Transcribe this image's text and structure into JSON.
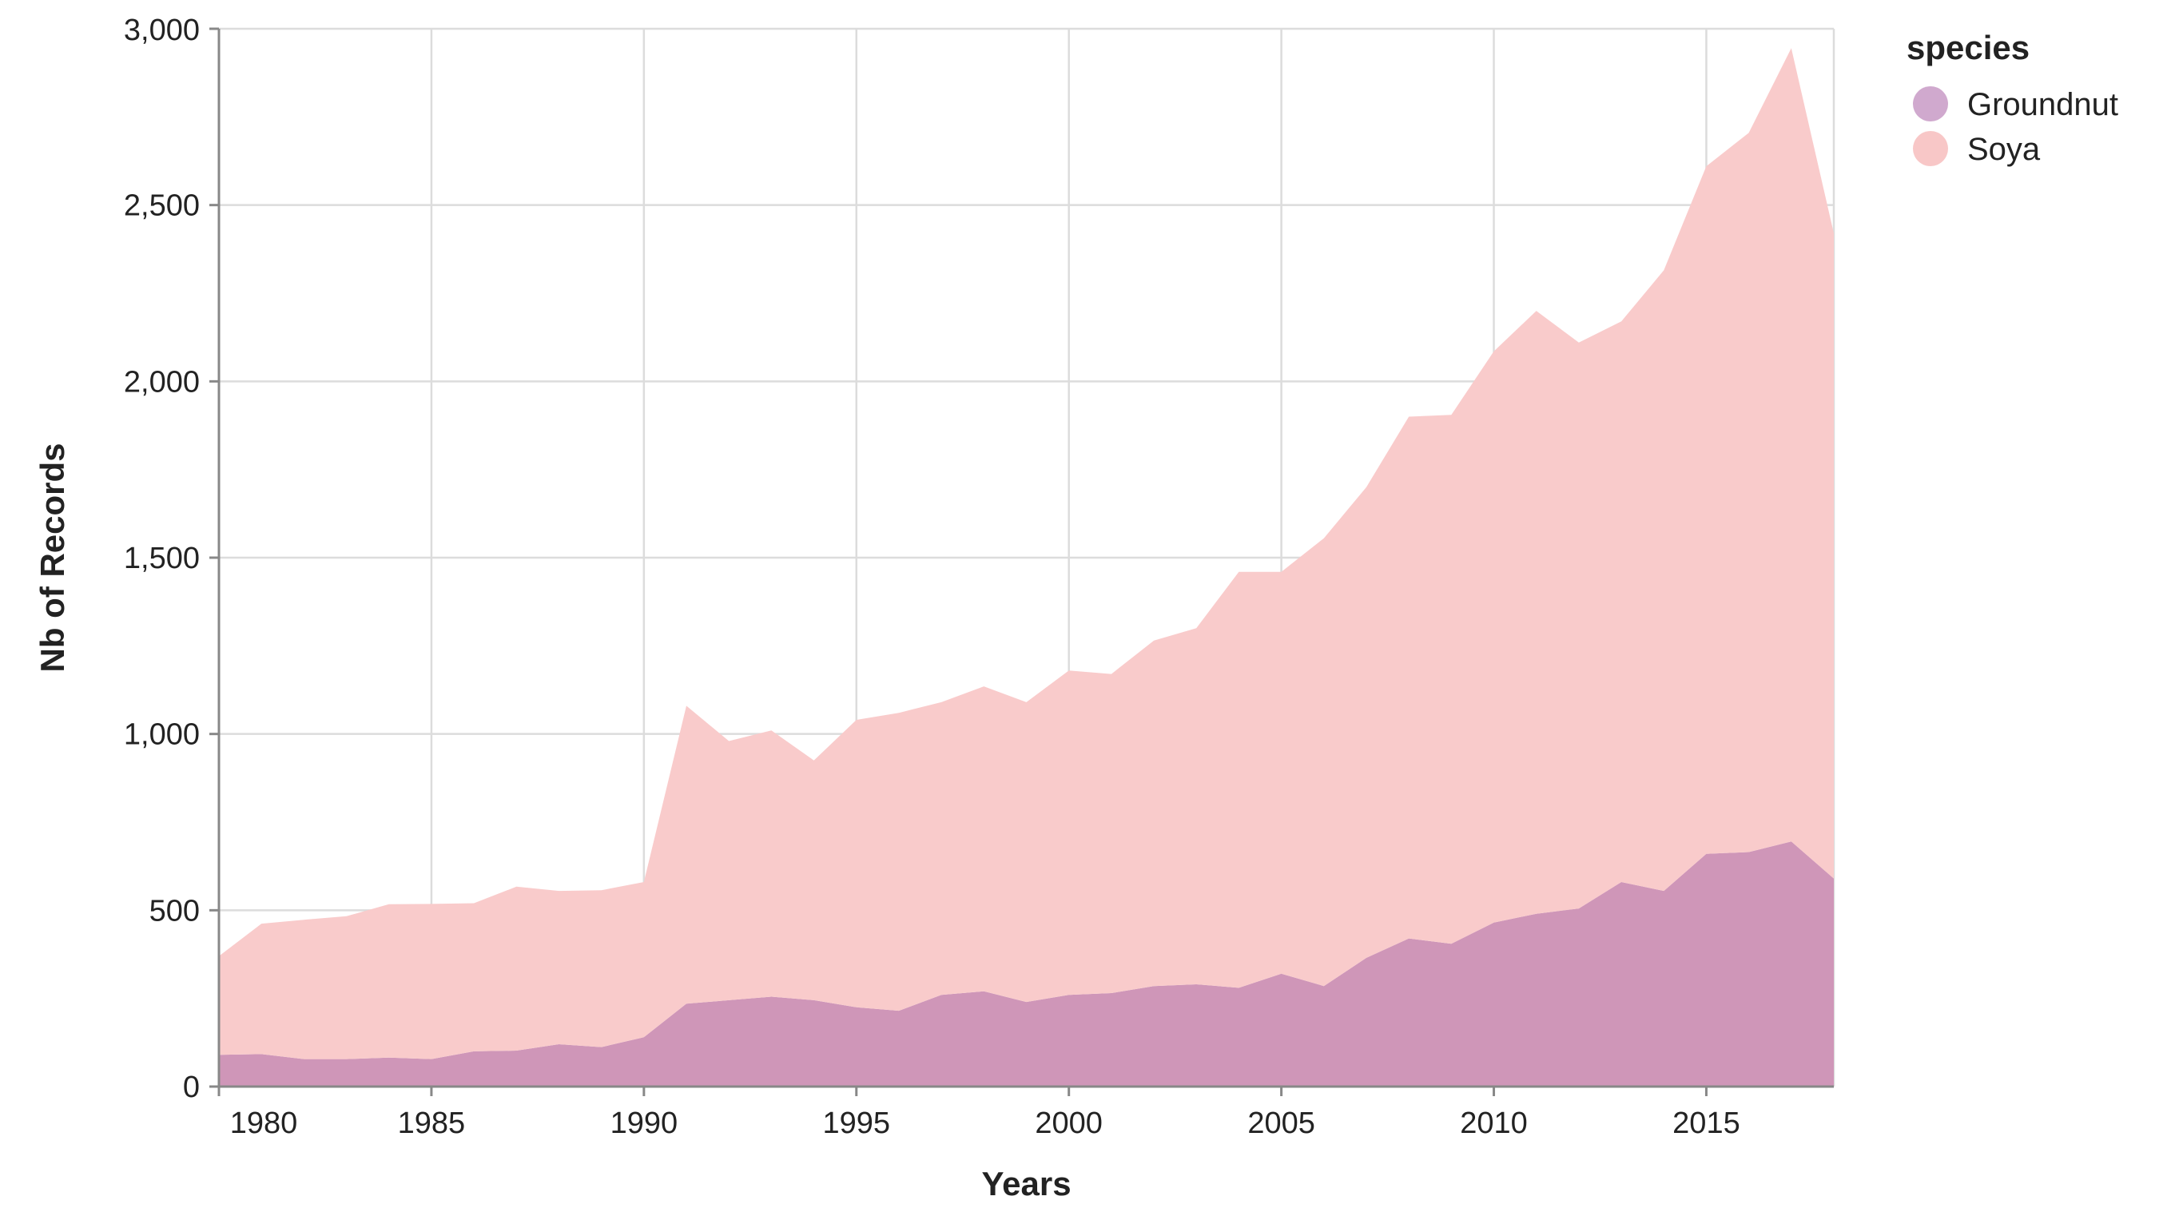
{
  "chart_data": {
    "type": "area",
    "stacked": true,
    "title": "",
    "xlabel": "Years",
    "ylabel": "Nb of Records",
    "xlim": [
      1980,
      2018
    ],
    "ylim": [
      0,
      3000
    ],
    "grid": true,
    "x_ticks": [
      1980,
      1985,
      1990,
      1995,
      2000,
      2005,
      2010,
      2015
    ],
    "x_tick_labels": [
      "1980",
      "1985",
      "1990",
      "1995",
      "2000",
      "2005",
      "2010",
      "2015"
    ],
    "y_ticks": [
      0,
      500,
      1000,
      1500,
      2000,
      2500,
      3000
    ],
    "y_tick_labels": [
      "0",
      "500",
      "1,000",
      "1,500",
      "2,000",
      "2,500",
      "3,000"
    ],
    "legend": {
      "title": "species",
      "position": "top-right",
      "items": [
        {
          "label": "Groundnut",
          "color": "#d0a9ce"
        },
        {
          "label": "Soya",
          "color": "#f8c7c7"
        }
      ]
    },
    "x": [
      1980,
      1981,
      1982,
      1983,
      1984,
      1985,
      1986,
      1987,
      1988,
      1989,
      1990,
      1991,
      1992,
      1993,
      1994,
      1995,
      1996,
      1997,
      1998,
      1999,
      2000,
      2001,
      2002,
      2003,
      2004,
      2005,
      2006,
      2007,
      2008,
      2009,
      2010,
      2011,
      2012,
      2013,
      2014,
      2015,
      2016,
      2017,
      2018
    ],
    "series": [
      {
        "name": "Groundnut",
        "color": "#cf96b8",
        "values": [
          90,
          92,
          78,
          78,
          82,
          78,
          100,
          102,
          120,
          112,
          140,
          235,
          245,
          255,
          245,
          225,
          215,
          260,
          270,
          240,
          260,
          265,
          285,
          290,
          280,
          320,
          285,
          365,
          420,
          405,
          465,
          490,
          505,
          580,
          555,
          660,
          665,
          695,
          590
        ]
      },
      {
        "name": "Soya",
        "color": "#f9cbcb",
        "values": [
          280,
          370,
          395,
          405,
          435,
          440,
          420,
          465,
          435,
          445,
          440,
          845,
          735,
          755,
          680,
          815,
          845,
          830,
          865,
          850,
          920,
          905,
          980,
          1010,
          1180,
          1140,
          1270,
          1335,
          1480,
          1500,
          1620,
          1710,
          1605,
          1590,
          1760,
          1950,
          2040,
          2250,
          1830
        ]
      }
    ]
  }
}
